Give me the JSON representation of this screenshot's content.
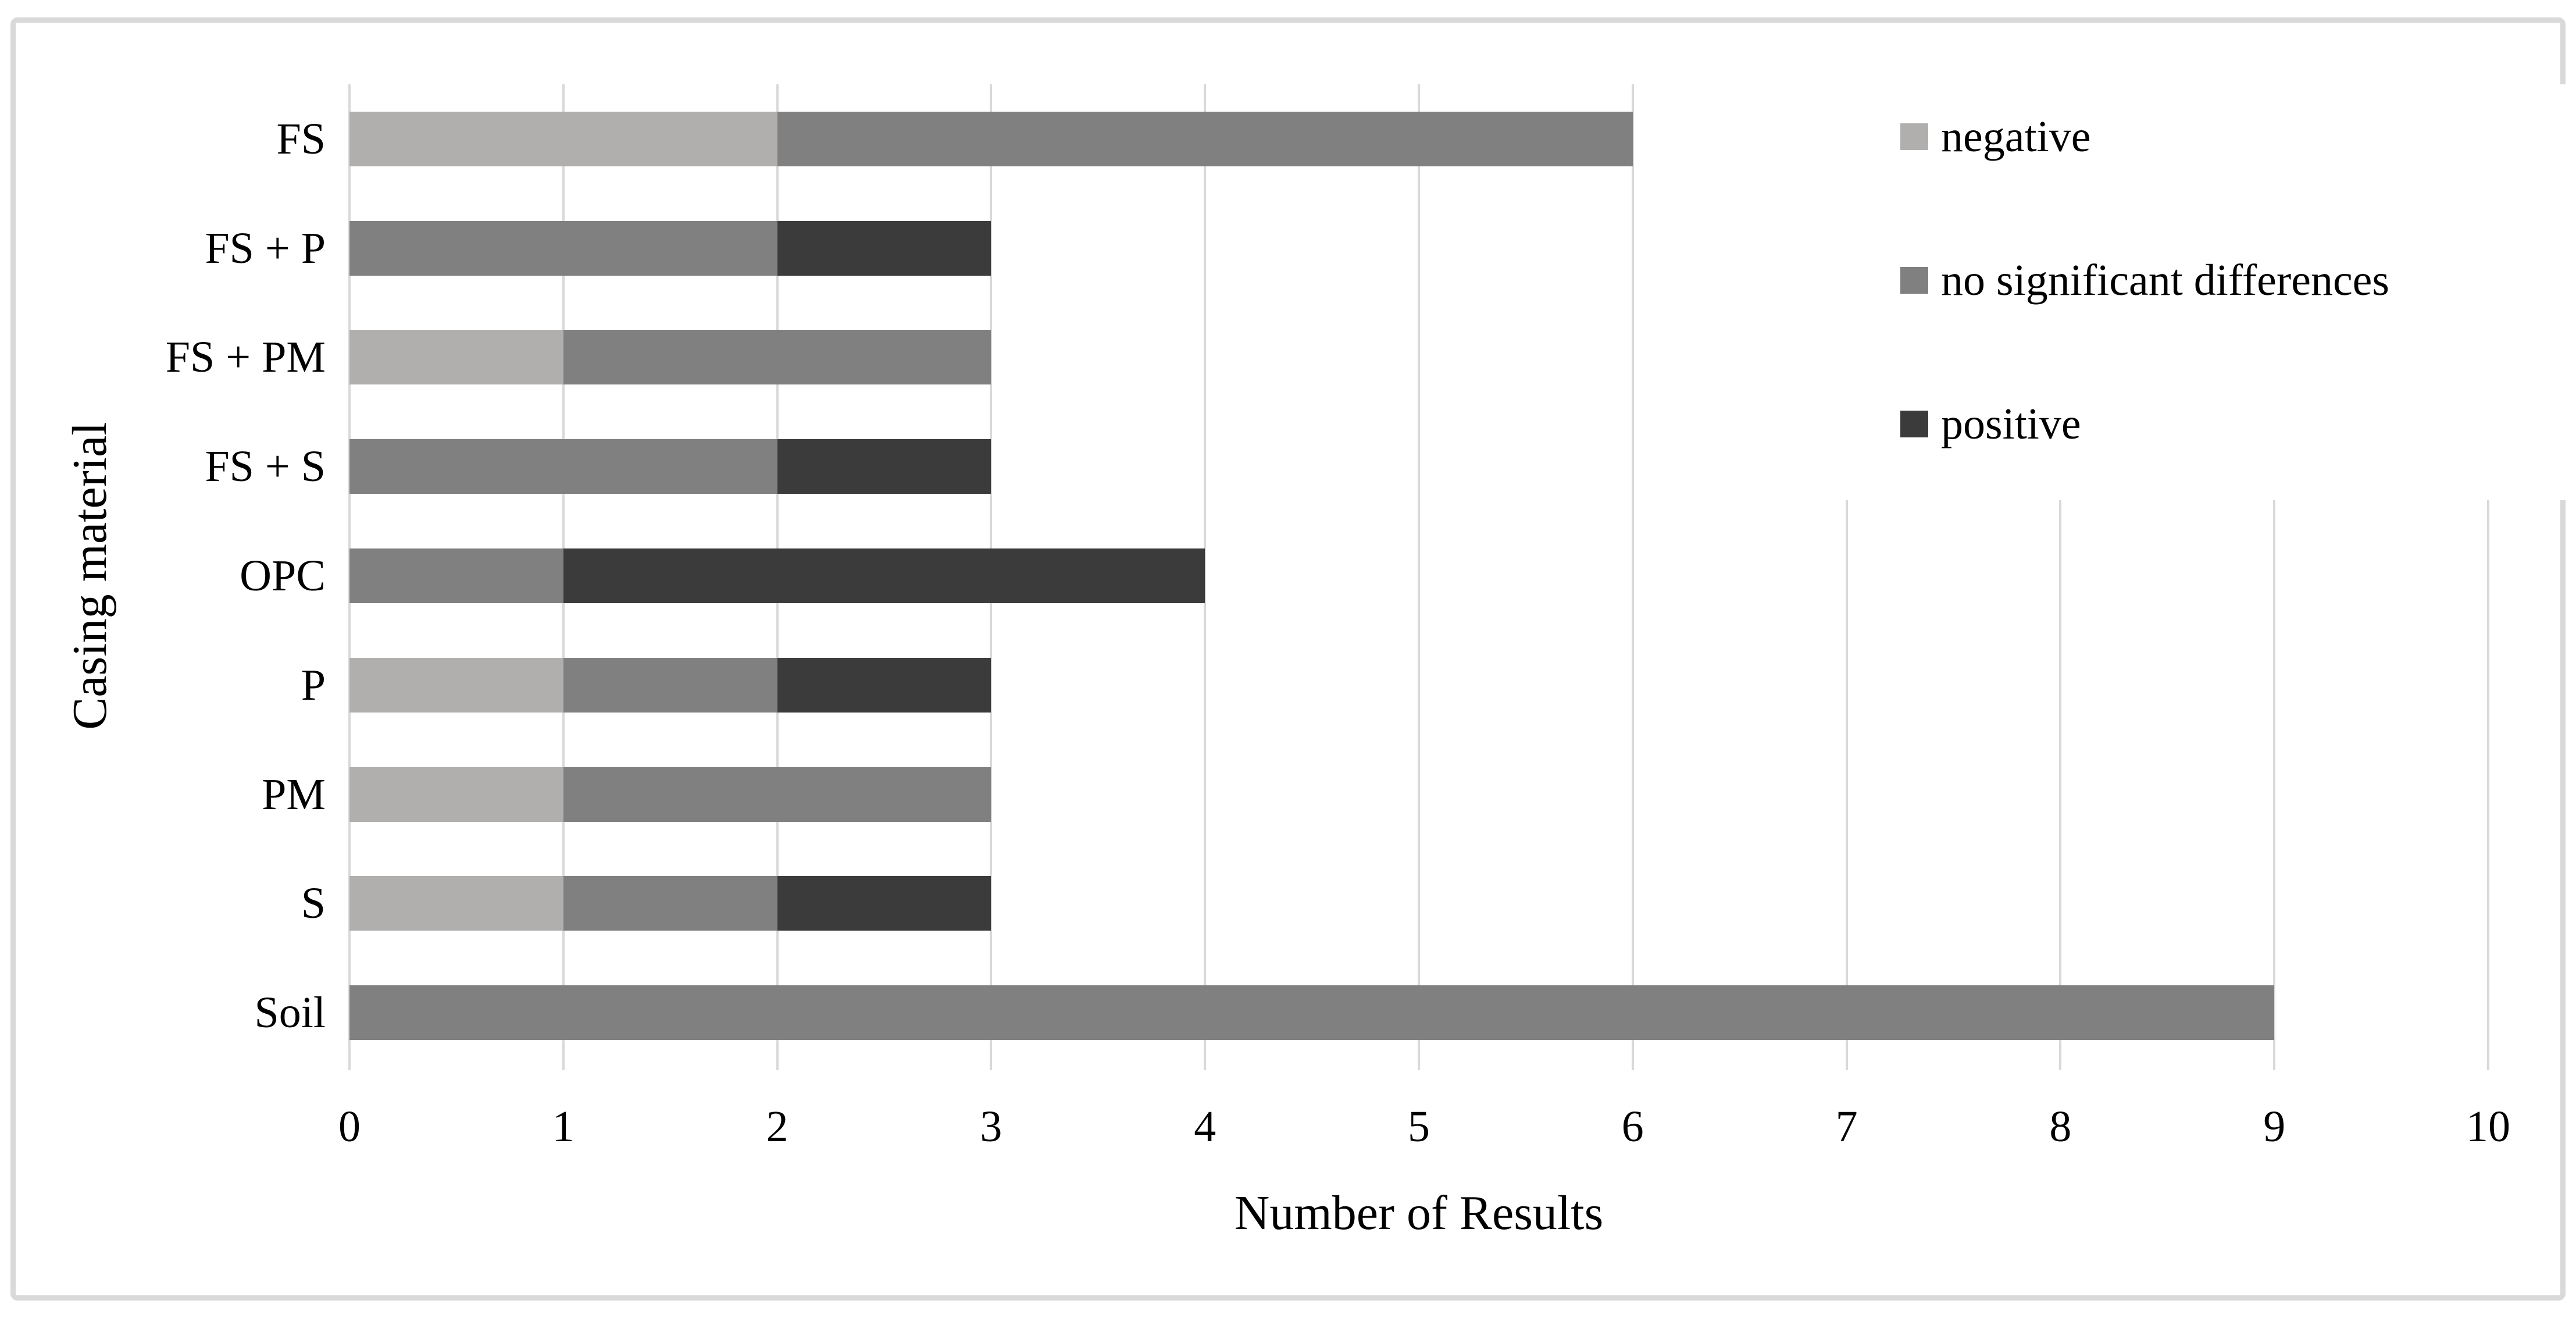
{
  "figure": {
    "kind": "journal-figure-stacked-bar-chart",
    "background_color": "#FFFFFF",
    "frame_color": "#D9D9D9"
  },
  "legend": {
    "items": [
      {
        "label": "negative",
        "color": "#B1AEAE"
      },
      {
        "label": "no significant differences",
        "color": "#808080"
      },
      {
        "label": "positive",
        "color": "#3B3B3B"
      }
    ]
  },
  "chart_data": {
    "type": "bar",
    "orientation": "horizontal",
    "stacked": true,
    "title": "",
    "xlabel": "Number of Results",
    "ylabel": "Casing material",
    "xlim": [
      0,
      10
    ],
    "x_ticks": [
      0,
      1,
      2,
      3,
      4,
      5,
      6,
      7,
      8,
      9,
      10
    ],
    "grid": "vertical gridlines on",
    "gridline_color": "#D9D9D9",
    "legend_position": "upper-right overlay on plot",
    "categories": [
      "FS",
      "FS + P",
      "FS + PM",
      "FS + S",
      "OPC",
      "P",
      "PM",
      "S",
      "Soil"
    ],
    "series": [
      {
        "name": "negative",
        "color": "#B1AEAE",
        "values": [
          2,
          0,
          1,
          0,
          0,
          1,
          1,
          1,
          0
        ]
      },
      {
        "name": "no significant differences",
        "color": "#808080",
        "values": [
          4,
          2,
          2,
          2,
          1,
          1,
          2,
          1,
          9
        ]
      },
      {
        "name": "positive",
        "color": "#3B3B3B",
        "values": [
          0,
          1,
          0,
          1,
          3,
          1,
          0,
          1,
          0
        ]
      }
    ],
    "totals_by_category": [
      6,
      3,
      3,
      3,
      4,
      3,
      3,
      3,
      9
    ]
  }
}
